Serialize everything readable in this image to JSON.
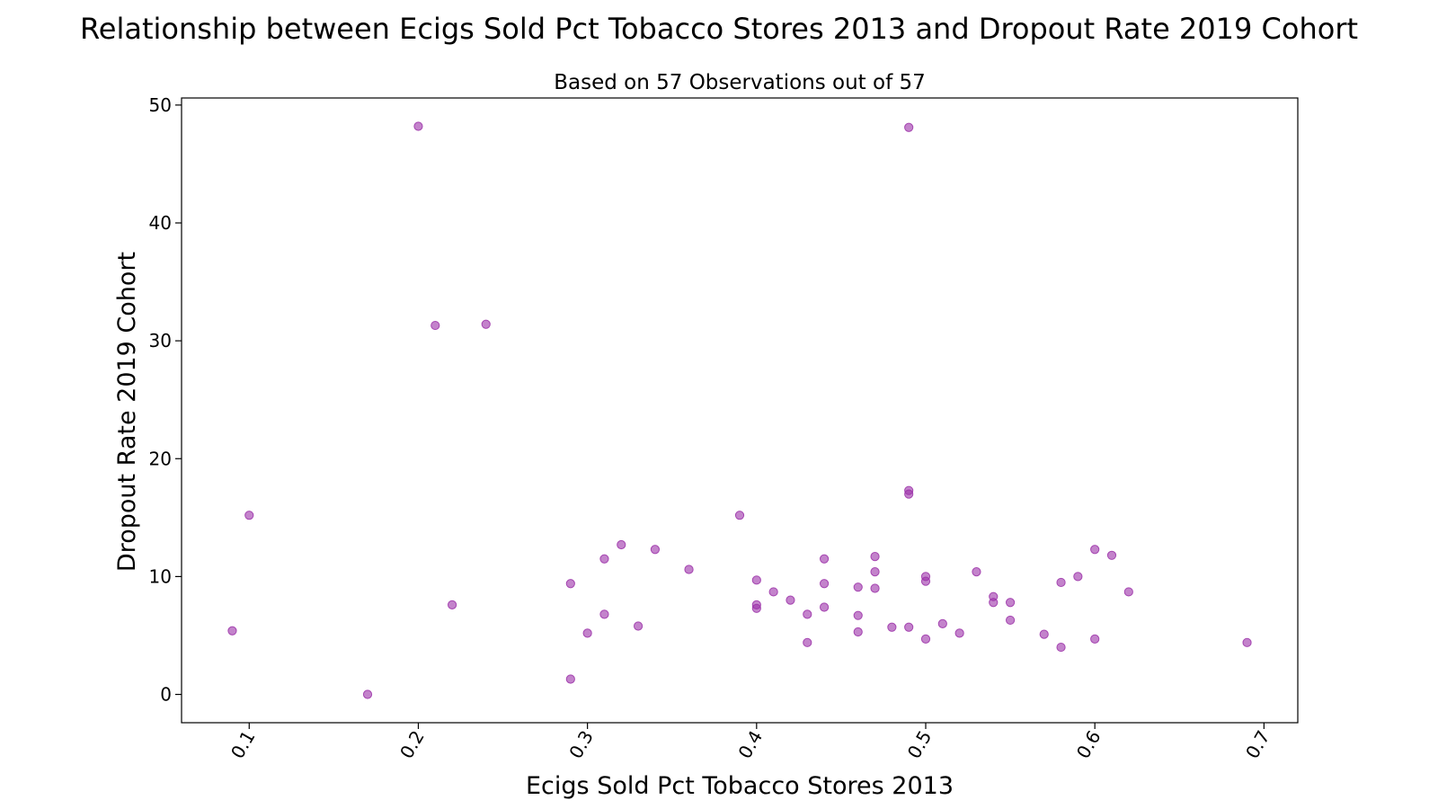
{
  "chart_data": {
    "type": "scatter",
    "title": "Relationship between Ecigs Sold Pct Tobacco Stores 2013 and Dropout Rate 2019 Cohort",
    "subtitle": "Based on 57 Observations out of 57",
    "xlabel": "Ecigs Sold Pct Tobacco Stores 2013",
    "ylabel": "Dropout Rate 2019 Cohort",
    "xlim": [
      0.06,
      0.72
    ],
    "ylim": [
      -2.4,
      50.6
    ],
    "xticks": [
      0.1,
      0.2,
      0.3,
      0.4,
      0.5,
      0.6,
      0.7
    ],
    "xtick_labels": [
      "0.1",
      "0.2",
      "0.3",
      "0.4",
      "0.5",
      "0.6",
      "0.7"
    ],
    "yticks": [
      0,
      10,
      20,
      30,
      40,
      50
    ],
    "ytick_labels": [
      "0",
      "10",
      "20",
      "30",
      "40",
      "50"
    ],
    "grid": false,
    "marker_color": "#9b30a8",
    "points": [
      [
        0.09,
        5.4
      ],
      [
        0.1,
        15.2
      ],
      [
        0.17,
        0.0
      ],
      [
        0.2,
        48.2
      ],
      [
        0.21,
        31.3
      ],
      [
        0.22,
        7.6
      ],
      [
        0.24,
        31.4
      ],
      [
        0.29,
        9.4
      ],
      [
        0.29,
        1.3
      ],
      [
        0.3,
        5.2
      ],
      [
        0.31,
        11.5
      ],
      [
        0.31,
        6.8
      ],
      [
        0.32,
        12.7
      ],
      [
        0.33,
        5.8
      ],
      [
        0.34,
        12.3
      ],
      [
        0.36,
        10.6
      ],
      [
        0.39,
        15.2
      ],
      [
        0.4,
        9.7
      ],
      [
        0.4,
        7.6
      ],
      [
        0.4,
        7.3
      ],
      [
        0.41,
        8.7
      ],
      [
        0.42,
        8.0
      ],
      [
        0.43,
        6.8
      ],
      [
        0.43,
        4.4
      ],
      [
        0.44,
        11.5
      ],
      [
        0.44,
        9.4
      ],
      [
        0.44,
        7.4
      ],
      [
        0.46,
        9.1
      ],
      [
        0.46,
        6.7
      ],
      [
        0.46,
        5.3
      ],
      [
        0.47,
        11.7
      ],
      [
        0.47,
        10.4
      ],
      [
        0.47,
        9.0
      ],
      [
        0.48,
        5.7
      ],
      [
        0.49,
        48.1
      ],
      [
        0.49,
        17.3
      ],
      [
        0.49,
        17.0
      ],
      [
        0.49,
        5.7
      ],
      [
        0.5,
        10.0
      ],
      [
        0.5,
        9.6
      ],
      [
        0.5,
        4.7
      ],
      [
        0.51,
        6.0
      ],
      [
        0.52,
        5.2
      ],
      [
        0.53,
        10.4
      ],
      [
        0.54,
        8.3
      ],
      [
        0.54,
        7.8
      ],
      [
        0.55,
        7.8
      ],
      [
        0.55,
        6.3
      ],
      [
        0.57,
        5.1
      ],
      [
        0.58,
        9.5
      ],
      [
        0.58,
        4.0
      ],
      [
        0.59,
        10.0
      ],
      [
        0.6,
        12.3
      ],
      [
        0.6,
        4.7
      ],
      [
        0.61,
        11.8
      ],
      [
        0.62,
        8.7
      ],
      [
        0.69,
        4.4
      ]
    ]
  }
}
